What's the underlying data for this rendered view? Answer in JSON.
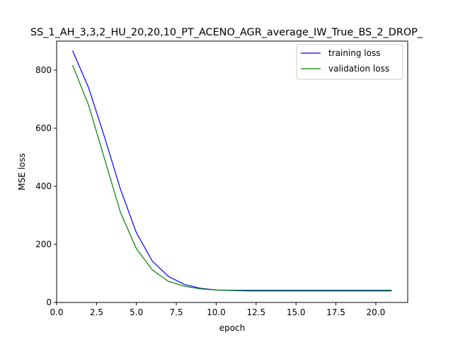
{
  "chart_data": {
    "type": "line",
    "title": "SS_1_AH_3,3,2_HU_20,20,10_PT_ACENO_AGR_average_IW_True_BS_2_DROP_",
    "xlabel": "epoch",
    "ylabel": "MSE loss",
    "xlim": [
      0,
      22
    ],
    "ylim": [
      0,
      900
    ],
    "xticks": [
      0.0,
      2.5,
      5.0,
      7.5,
      10.0,
      12.5,
      15.0,
      17.5,
      20.0
    ],
    "xtick_labels": [
      "0.0",
      "2.5",
      "5.0",
      "7.5",
      "10.0",
      "12.5",
      "15.0",
      "17.5",
      "20.0"
    ],
    "yticks": [
      0,
      200,
      400,
      600,
      800
    ],
    "ytick_labels": [
      "0",
      "200",
      "400",
      "600",
      "800"
    ],
    "grid": false,
    "legend": "top-right",
    "x": [
      1,
      2,
      3,
      4,
      5,
      6,
      7,
      8,
      9,
      10,
      11,
      12,
      13,
      14,
      15,
      16,
      17,
      18,
      19,
      20,
      21
    ],
    "series": [
      {
        "name": "training loss",
        "color": "#0000ff",
        "values": [
          867,
          740,
          570,
          390,
          240,
          142,
          90,
          62,
          49,
          43,
          41,
          40,
          40,
          40,
          40,
          40,
          40,
          40,
          40,
          40,
          40
        ]
      },
      {
        "name": "validation loss",
        "color": "#008000",
        "values": [
          817,
          680,
          495,
          310,
          185,
          112,
          73,
          56,
          47,
          43,
          42,
          42,
          42,
          42,
          42,
          42,
          42,
          42,
          42,
          42,
          42
        ]
      }
    ]
  }
}
